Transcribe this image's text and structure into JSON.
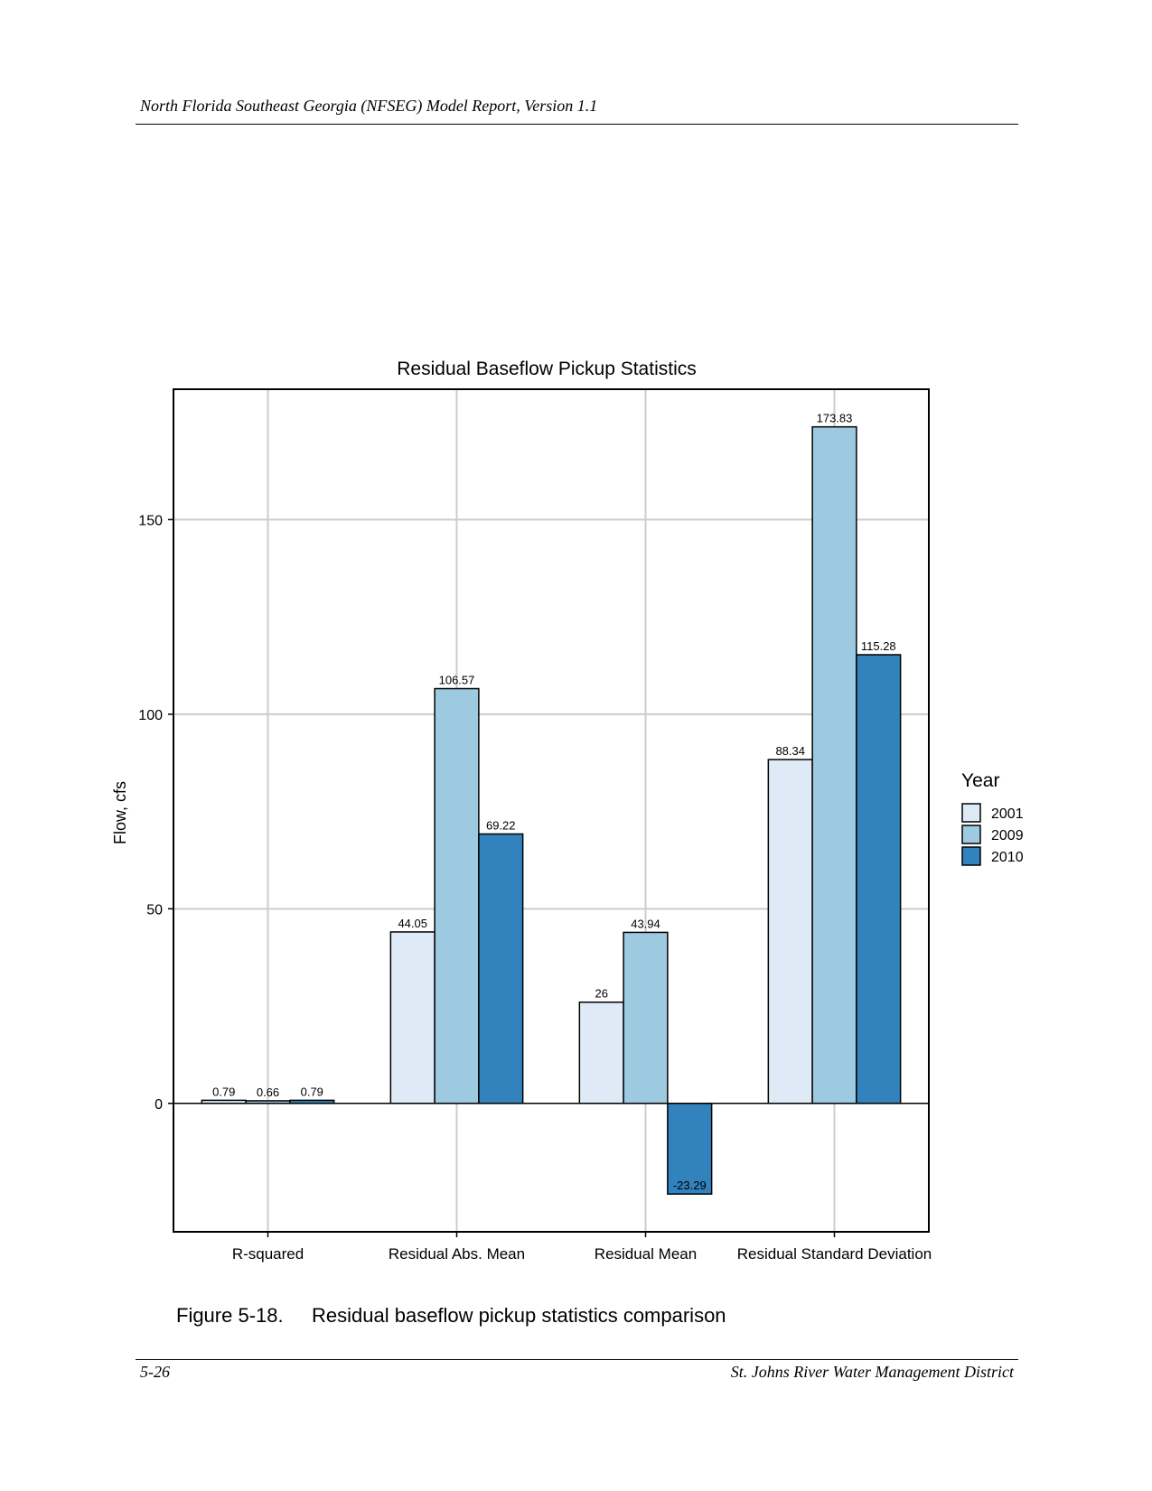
{
  "header": {
    "text": "North Florida Southeast Georgia (NFSEG) Model Report, Version 1.1"
  },
  "footer": {
    "page_number": "5-26",
    "organization": "St. Johns River Water Management District"
  },
  "caption": {
    "number": "Figure 5-18.",
    "text": "Residual baseflow pickup statistics comparison"
  },
  "colors": {
    "2001": "#deebf7",
    "2009": "#9ecae1",
    "2010": "#3182bd",
    "grid": "#cccccc",
    "outline": "#000000"
  },
  "chart_data": {
    "type": "bar",
    "title": "Residual Baseflow Pickup Statistics",
    "xlabel": "",
    "ylabel": "Flow, cfs",
    "categories": [
      "R-squared",
      "Residual Abs. Mean",
      "Residual Mean",
      "Residual Standard Deviation"
    ],
    "series": [
      {
        "name": "2001",
        "values": [
          0.79,
          44.05,
          26,
          88.34
        ],
        "labels": [
          "0.79",
          "44.05",
          "26",
          "88.34"
        ]
      },
      {
        "name": "2009",
        "values": [
          0.66,
          106.57,
          43.94,
          173.83
        ],
        "labels": [
          "0.66",
          "106.57",
          "43.94",
          "173.83"
        ]
      },
      {
        "name": "2010",
        "values": [
          0.79,
          69.22,
          -23.29,
          115.28
        ],
        "labels": [
          "0.79",
          "69.22",
          "-23.29",
          "115.28"
        ]
      }
    ],
    "ylim": [
      -33,
      183.5
    ],
    "yticks": [
      0,
      50,
      100,
      150
    ],
    "ytick_labels": [
      "0",
      "50",
      "100",
      "150"
    ],
    "grid": true,
    "legend": {
      "title": "Year",
      "placement": "right"
    }
  }
}
